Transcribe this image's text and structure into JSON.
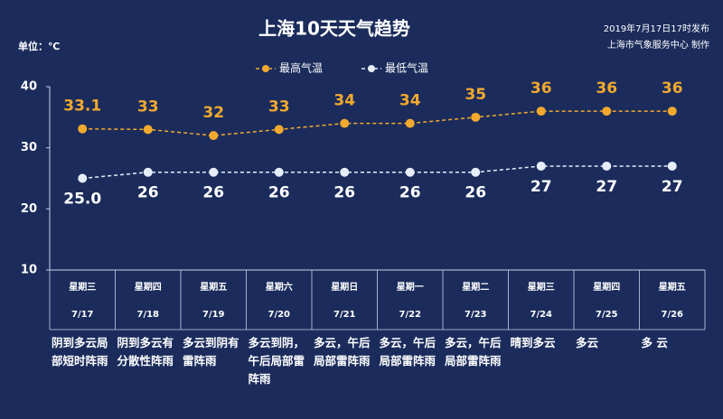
{
  "chart_data": {
    "type": "line",
    "title": "上海10天天气趋势",
    "issued": "2019年7月17日17时发布",
    "producer": "上海市气象服务中心 制作",
    "unit_label": "单位：℃",
    "categories": [
      "7/17",
      "7/18",
      "7/19",
      "7/20",
      "7/21",
      "7/22",
      "7/23",
      "7/24",
      "7/25",
      "7/26"
    ],
    "weekdays": [
      "星期三",
      "星期四",
      "星期五",
      "星期六",
      "星期日",
      "星期一",
      "星期二",
      "星期三",
      "星期四",
      "星期五"
    ],
    "weather": [
      "阴到多云局部短时阵雨",
      "阴到多云有分散性阵雨",
      "多云到阴有雷阵雨",
      "多云到阴，午后局部雷阵雨",
      "多云，午后局部雷阵雨",
      "多云，午后局部雷阵雨",
      "多云，午后局部雷阵雨",
      "晴到多云",
      "多云",
      "多 云"
    ],
    "series": [
      {
        "name": "最高气温",
        "color": "#f2a92e",
        "values": [
          33.1,
          33,
          32,
          33,
          34,
          34,
          35,
          36,
          36,
          36
        ],
        "value_labels": [
          "33.1",
          "33",
          "32",
          "33",
          "34",
          "34",
          "35",
          "36",
          "36",
          "36"
        ]
      },
      {
        "name": "最低气温",
        "color": "#e6edf8",
        "values": [
          25,
          26,
          26,
          26,
          26,
          26,
          26,
          27,
          27,
          27
        ],
        "value_labels": [
          "25.0",
          "26",
          "26",
          "26",
          "26",
          "26",
          "26",
          "27",
          "27",
          "27"
        ]
      }
    ],
    "ylim": [
      10,
      40
    ],
    "yticks": [
      10,
      20,
      30,
      40
    ],
    "legend": "top"
  }
}
